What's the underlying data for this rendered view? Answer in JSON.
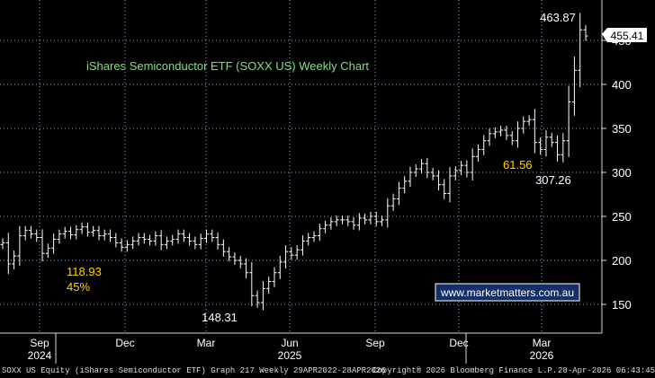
{
  "chart_data": {
    "type": "ohlc",
    "title": "iShares Semiconductor ETF (SOXX US) Weekly Chart",
    "y_ticks": [
      150,
      200,
      250,
      300,
      350,
      400,
      450
    ],
    "ylim": [
      128,
      480
    ],
    "x_month_ticks": [
      "Sep",
      "Dec",
      "Mar",
      "Jun",
      "Sep",
      "Dec",
      "Mar"
    ],
    "x_year_labels": [
      "2024",
      "2025",
      "2026"
    ],
    "last_price_label": "455.41",
    "annotations": {
      "high_label": "463.87",
      "low_label": "148.31",
      "left_label_1": "118.93",
      "left_label_2": "45%",
      "pullback_low": "307.26",
      "pullback_amount": "61.56"
    },
    "watermark": "www.marketmatters.com.au",
    "closes": [
      220,
      196,
      205,
      228,
      234,
      230,
      226,
      208,
      214,
      224,
      230,
      233,
      229,
      235,
      238,
      232,
      234,
      228,
      230,
      226,
      220,
      215,
      218,
      222,
      226,
      224,
      222,
      228,
      218,
      222,
      224,
      230,
      226,
      222,
      218,
      225,
      230,
      226,
      218,
      210,
      204,
      200,
      196,
      186,
      160,
      152,
      168,
      176,
      186,
      198,
      210,
      206,
      212,
      222,
      226,
      228,
      236,
      240,
      244,
      246,
      246,
      244,
      240,
      248,
      246,
      250,
      244,
      246,
      262,
      270,
      282,
      290,
      300,
      304,
      310,
      300,
      296,
      286,
      276,
      296,
      302,
      308,
      300,
      318,
      326,
      336,
      344,
      346,
      348,
      342,
      336,
      350,
      358,
      360,
      334,
      326,
      340,
      334,
      320,
      336,
      380,
      416,
      462,
      455
    ],
    "ohlc_sample": [
      {
        "open": 219,
        "high": 237,
        "low": 197,
        "close": 220
      }
    ]
  },
  "footer": {
    "left": "SOXX US Equity (iShares Semiconductor ETF) Graph 217 Weekly 29APR2022-28APR2026",
    "middle": "Copyright® 2026 Bloomberg Finance L.P.",
    "right": "28-Apr-2026 06:43:45"
  },
  "colors": {
    "background": "#000000",
    "bars": "#ffffff",
    "grid": "#8fa8c8",
    "title": "#7ee07e",
    "annotation_yellow": "#ffd400",
    "annotation_white": "#ffffff",
    "watermark_bg": "#14306a"
  }
}
